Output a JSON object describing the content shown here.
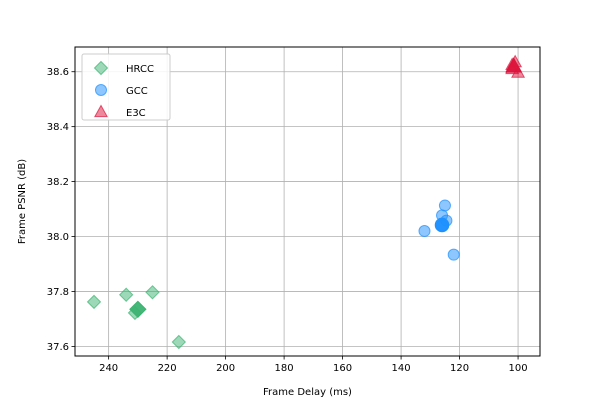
{
  "chart_data": {
    "type": "scatter",
    "title": "",
    "xlabel": "Frame Delay (ms)",
    "ylabel": "Frame PSNR (dB)",
    "xlim": [
      251.5,
      92.5
    ],
    "ylim": [
      37.565,
      38.69
    ],
    "x_ticks": [
      240,
      220,
      200,
      180,
      160,
      140,
      120,
      100
    ],
    "y_ticks": [
      37.6,
      37.8,
      38.0,
      38.2,
      38.4,
      38.6
    ],
    "y_tick_labels": [
      "37.6",
      "37.8",
      "38.0",
      "38.2",
      "38.4",
      "38.6"
    ],
    "grid": true,
    "legend_position": "upper-left",
    "series": [
      {
        "name": "HRCC",
        "marker": "diamond",
        "color": "#3cb371",
        "points": [
          {
            "x": 245,
            "y": 37.762
          },
          {
            "x": 234,
            "y": 37.788
          },
          {
            "x": 225,
            "y": 37.797
          },
          {
            "x": 216,
            "y": 37.616
          },
          {
            "x": 231,
            "y": 37.722
          }
        ],
        "mean": {
          "x": 230,
          "y": 37.735
        }
      },
      {
        "name": "GCC",
        "marker": "circle",
        "color": "#1e90ff",
        "points": [
          {
            "x": 132,
            "y": 38.02
          },
          {
            "x": 125,
            "y": 38.113
          },
          {
            "x": 126,
            "y": 38.077
          },
          {
            "x": 124.5,
            "y": 38.058
          },
          {
            "x": 122,
            "y": 37.934
          },
          {
            "x": 126,
            "y": 38.04
          }
        ],
        "mean": {
          "x": 126,
          "y": 38.042
        }
      },
      {
        "name": "E3C",
        "marker": "triangle",
        "color": "#dc143c",
        "points": [
          {
            "x": 101,
            "y": 38.635
          },
          {
            "x": 102,
            "y": 38.61
          },
          {
            "x": 100,
            "y": 38.597
          },
          {
            "x": 102,
            "y": 38.625
          }
        ],
        "mean": {
          "x": 101.5,
          "y": 38.62
        }
      }
    ]
  }
}
